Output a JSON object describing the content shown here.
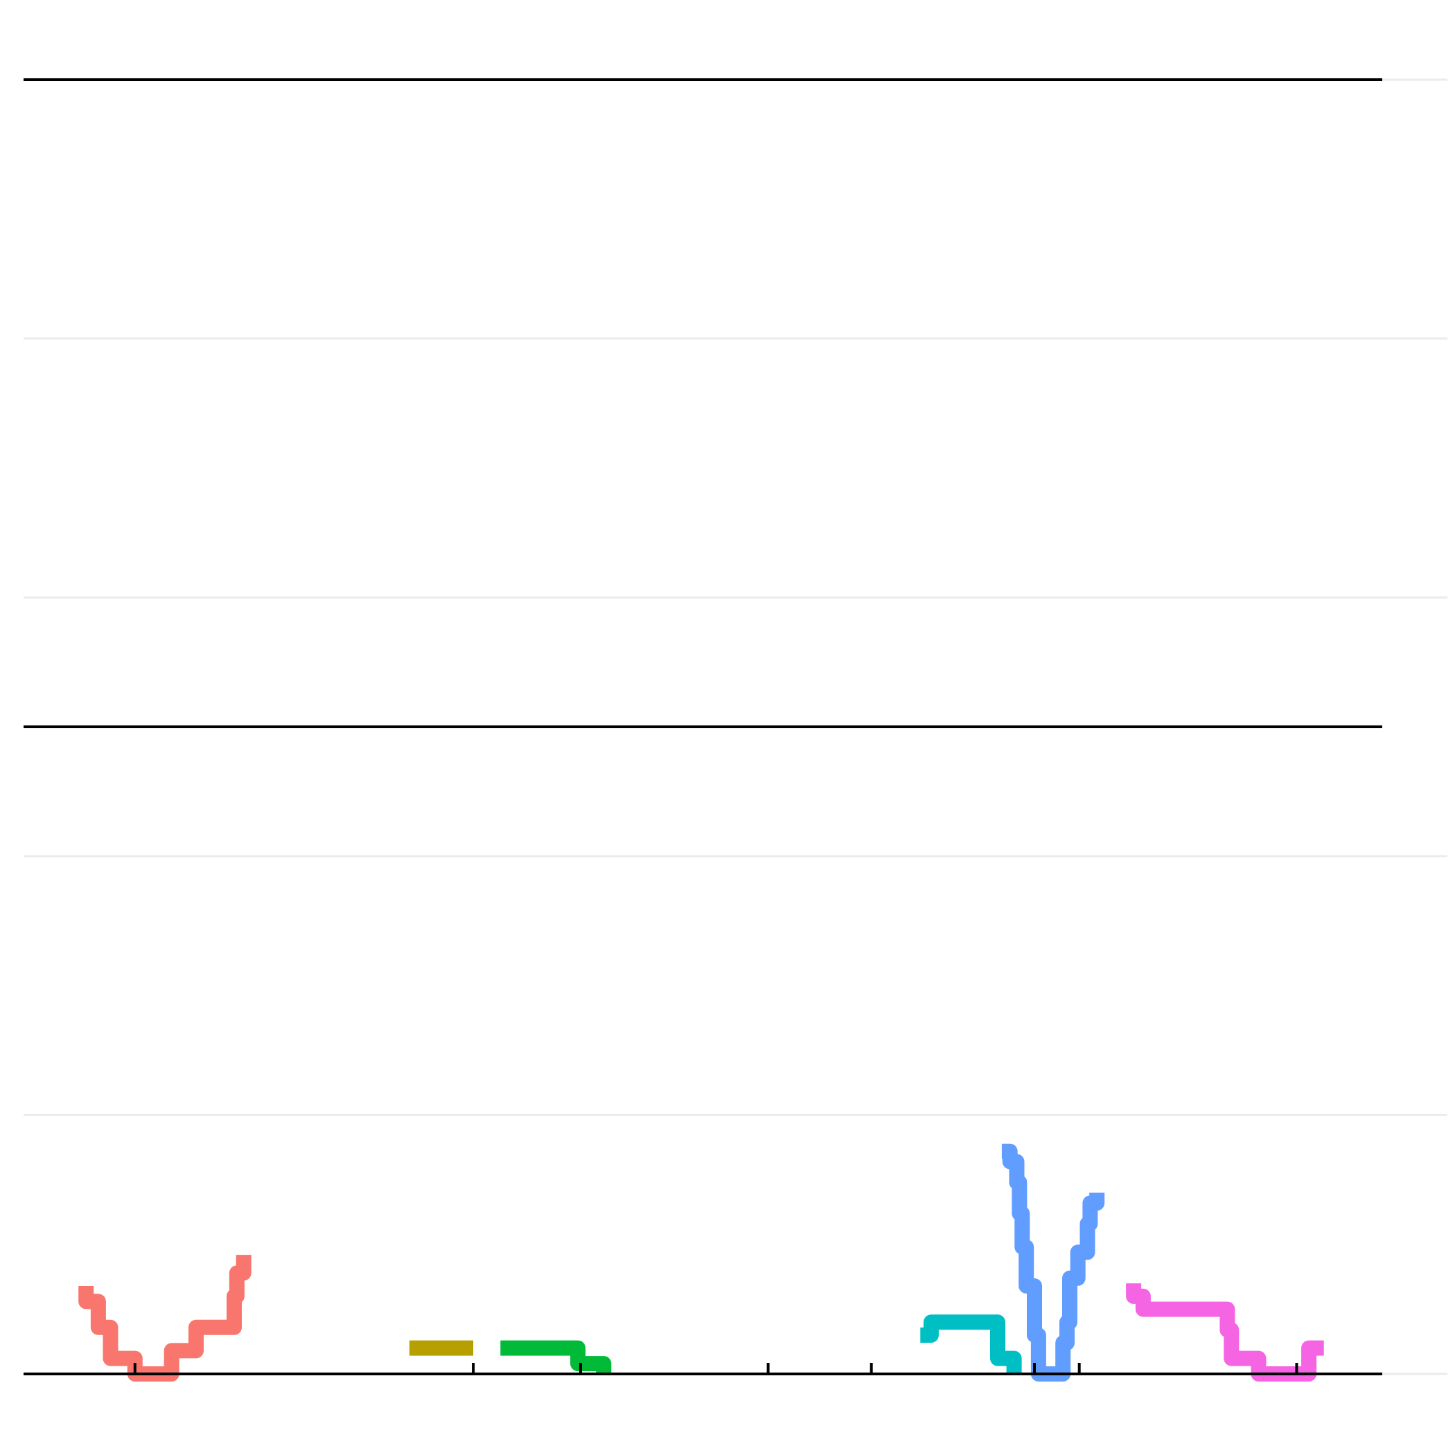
{
  "chart_data": {
    "type": "line",
    "step": true,
    "title": "",
    "xlabel": "",
    "ylabel": "",
    "xlim": [
      0,
      100
    ],
    "ylim": [
      0,
      5
    ],
    "x_ticks": [
      8.2,
      33.1,
      41.0,
      54.8,
      62.4,
      74.4,
      77.7,
      93.7
    ],
    "gridlines_y": [
      0,
      1,
      2,
      3,
      4,
      5
    ],
    "grid": true,
    "legend": "none",
    "series": [
      {
        "color": "#F8766D",
        "points": [
          [
            4.6,
            0.34
          ],
          [
            4.6,
            0.28
          ],
          [
            5.5,
            0.28
          ],
          [
            5.5,
            0.18
          ],
          [
            6.4,
            0.18
          ],
          [
            6.4,
            0.06
          ],
          [
            8.2,
            0.06
          ],
          [
            8.2,
            0.0
          ],
          [
            10.0,
            0.0
          ],
          [
            10.9,
            0.0
          ],
          [
            10.9,
            0.09
          ],
          [
            12.7,
            0.09
          ],
          [
            12.7,
            0.18
          ],
          [
            15.5,
            0.18
          ],
          [
            15.5,
            0.3
          ],
          [
            15.7,
            0.3
          ],
          [
            15.7,
            0.39
          ],
          [
            16.2,
            0.39
          ],
          [
            16.2,
            0.46
          ]
        ]
      },
      {
        "color": "#B79F00",
        "points": [
          [
            28.4,
            0.1
          ],
          [
            33.1,
            0.1
          ]
        ]
      },
      {
        "color": "#00BA38",
        "points": [
          [
            35.1,
            0.1
          ],
          [
            40.8,
            0.1
          ],
          [
            40.8,
            0.04
          ],
          [
            42.7,
            0.04
          ],
          [
            42.7,
            0.0
          ]
        ]
      },
      {
        "color": "#00BFC4",
        "points": [
          [
            66.0,
            0.15
          ],
          [
            66.8,
            0.15
          ],
          [
            66.8,
            0.2
          ],
          [
            71.7,
            0.2
          ],
          [
            71.7,
            0.06
          ],
          [
            72.9,
            0.06
          ],
          [
            72.9,
            0.0
          ]
        ]
      },
      {
        "color": "#619CFF",
        "points": [
          [
            72.0,
            0.86
          ],
          [
            72.6,
            0.86
          ],
          [
            72.6,
            0.82
          ],
          [
            73.1,
            0.82
          ],
          [
            73.1,
            0.74
          ],
          [
            73.3,
            0.74
          ],
          [
            73.3,
            0.62
          ],
          [
            73.5,
            0.62
          ],
          [
            73.5,
            0.49
          ],
          [
            73.8,
            0.49
          ],
          [
            73.8,
            0.34
          ],
          [
            74.4,
            0.34
          ],
          [
            74.4,
            0.15
          ],
          [
            74.7,
            0.15
          ],
          [
            74.7,
            0.0
          ],
          [
            76.5,
            0.0
          ],
          [
            76.5,
            0.12
          ],
          [
            76.8,
            0.12
          ],
          [
            76.8,
            0.2
          ],
          [
            77.0,
            0.2
          ],
          [
            77.0,
            0.37
          ],
          [
            77.6,
            0.37
          ],
          [
            77.6,
            0.47
          ],
          [
            78.3,
            0.47
          ],
          [
            78.3,
            0.58
          ],
          [
            78.5,
            0.58
          ],
          [
            78.5,
            0.66
          ],
          [
            79.0,
            0.66
          ],
          [
            79.0,
            0.7
          ]
        ]
      },
      {
        "color": "#F564E3",
        "points": [
          [
            81.7,
            0.35
          ],
          [
            81.7,
            0.3
          ],
          [
            82.4,
            0.3
          ],
          [
            82.4,
            0.25
          ],
          [
            88.6,
            0.25
          ],
          [
            88.6,
            0.17
          ],
          [
            88.9,
            0.17
          ],
          [
            88.9,
            0.06
          ],
          [
            90.9,
            0.06
          ],
          [
            90.9,
            0.0
          ],
          [
            94.6,
            0.0
          ],
          [
            94.6,
            0.1
          ],
          [
            95.7,
            0.1
          ]
        ]
      }
    ]
  }
}
